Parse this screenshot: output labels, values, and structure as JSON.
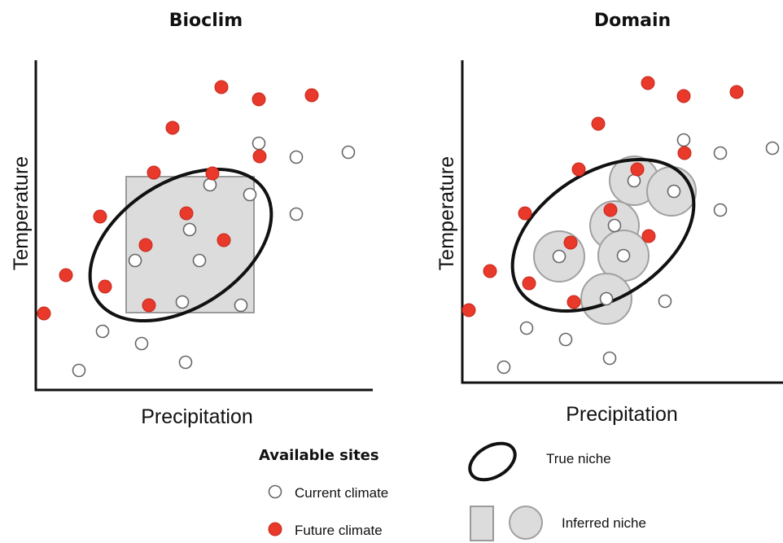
{
  "panels": [
    {
      "id": "bioclim",
      "title": "Bioclim",
      "xlabel": "Precipitation",
      "ylabel": "Temperature"
    },
    {
      "id": "domain",
      "title": "Domain",
      "xlabel": "Precipitation",
      "ylabel": "Temperature"
    }
  ],
  "legend": {
    "available_sites": "Available sites",
    "current_climate": "Current climate",
    "future_climate": "Future climate",
    "true_niche": "True niche",
    "inferred_niche": "Inferred niche"
  },
  "colors": {
    "future": "#e8392b",
    "current": "#ffffff",
    "point_outline": "#666666",
    "inferred_fill": "#dcdcdc",
    "inferred_outline": "#a0a0a0",
    "axis": "#111111"
  }
}
